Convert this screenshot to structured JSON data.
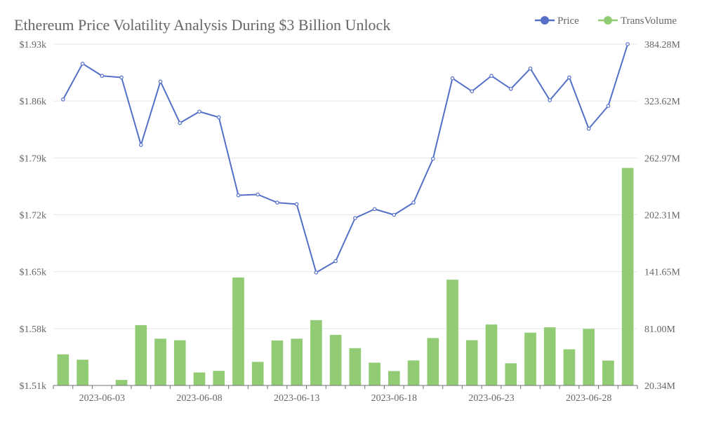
{
  "chart_data": {
    "type": "bar+line",
    "title": "Ethereum Price Volatility Analysis During $3 Billion Unlock",
    "x": [
      "2023-06-01",
      "2023-06-02",
      "2023-06-03",
      "2023-06-04",
      "2023-06-05",
      "2023-06-06",
      "2023-06-07",
      "2023-06-08",
      "2023-06-09",
      "2023-06-10",
      "2023-06-11",
      "2023-06-12",
      "2023-06-13",
      "2023-06-14",
      "2023-06-15",
      "2023-06-16",
      "2023-06-17",
      "2023-06-18",
      "2023-06-19",
      "2023-06-20",
      "2023-06-21",
      "2023-06-22",
      "2023-06-23",
      "2023-06-24",
      "2023-06-25",
      "2023-06-26",
      "2023-06-27",
      "2023-06-28",
      "2023-06-29",
      "2023-06-30"
    ],
    "x_tick_labels": [
      "2023-06-03",
      "2023-06-08",
      "2023-06-13",
      "2023-06-18",
      "2023-06-23",
      "2023-06-28"
    ],
    "y_left": {
      "ticks": [
        1.51,
        1.58,
        1.65,
        1.72,
        1.79,
        1.86,
        1.93
      ],
      "tick_labels": [
        "$1.51k",
        "$1.58k",
        "$1.65k",
        "$1.72k",
        "$1.79k",
        "$1.86k",
        "$1.93k"
      ],
      "range": [
        1.51,
        1.93
      ],
      "unit": "thousand USD"
    },
    "y_right": {
      "ticks": [
        20.34,
        81.0,
        141.65,
        202.31,
        262.97,
        323.62,
        384.28
      ],
      "tick_labels": [
        "20.34M",
        "81.00M",
        "141.65M",
        "202.31M",
        "262.97M",
        "323.62M",
        "384.28M"
      ],
      "range": [
        20.34,
        384.28
      ],
      "unit": "million"
    },
    "series": [
      {
        "name": "Price",
        "type": "line",
        "axis": "left",
        "color": "#5470c6",
        "values": [
          1.862,
          1.906,
          1.891,
          1.889,
          1.806,
          1.884,
          1.833,
          1.847,
          1.84,
          1.744,
          1.745,
          1.735,
          1.733,
          1.649,
          1.663,
          1.716,
          1.727,
          1.72,
          1.735,
          1.789,
          1.888,
          1.872,
          1.891,
          1.875,
          1.9,
          1.861,
          1.889,
          1.826,
          1.854,
          1.93
        ]
      },
      {
        "name": "TransVolume",
        "type": "bar",
        "axis": "right",
        "color": "#91cc75",
        "values": [
          53.5,
          47.8,
          20.34,
          26.2,
          84.7,
          70.2,
          68.5,
          34.2,
          35.9,
          135.5,
          45.5,
          68.3,
          70.2,
          90.0,
          74.3,
          60.1,
          44.6,
          35.7,
          47.0,
          70.9,
          133.1,
          68.6,
          85.3,
          44.0,
          76.6,
          82.3,
          58.9,
          80.7,
          46.9,
          252.3
        ]
      }
    ],
    "legend": {
      "position": "top-right",
      "items": [
        "Price",
        "TransVolume"
      ]
    },
    "grid": true
  }
}
